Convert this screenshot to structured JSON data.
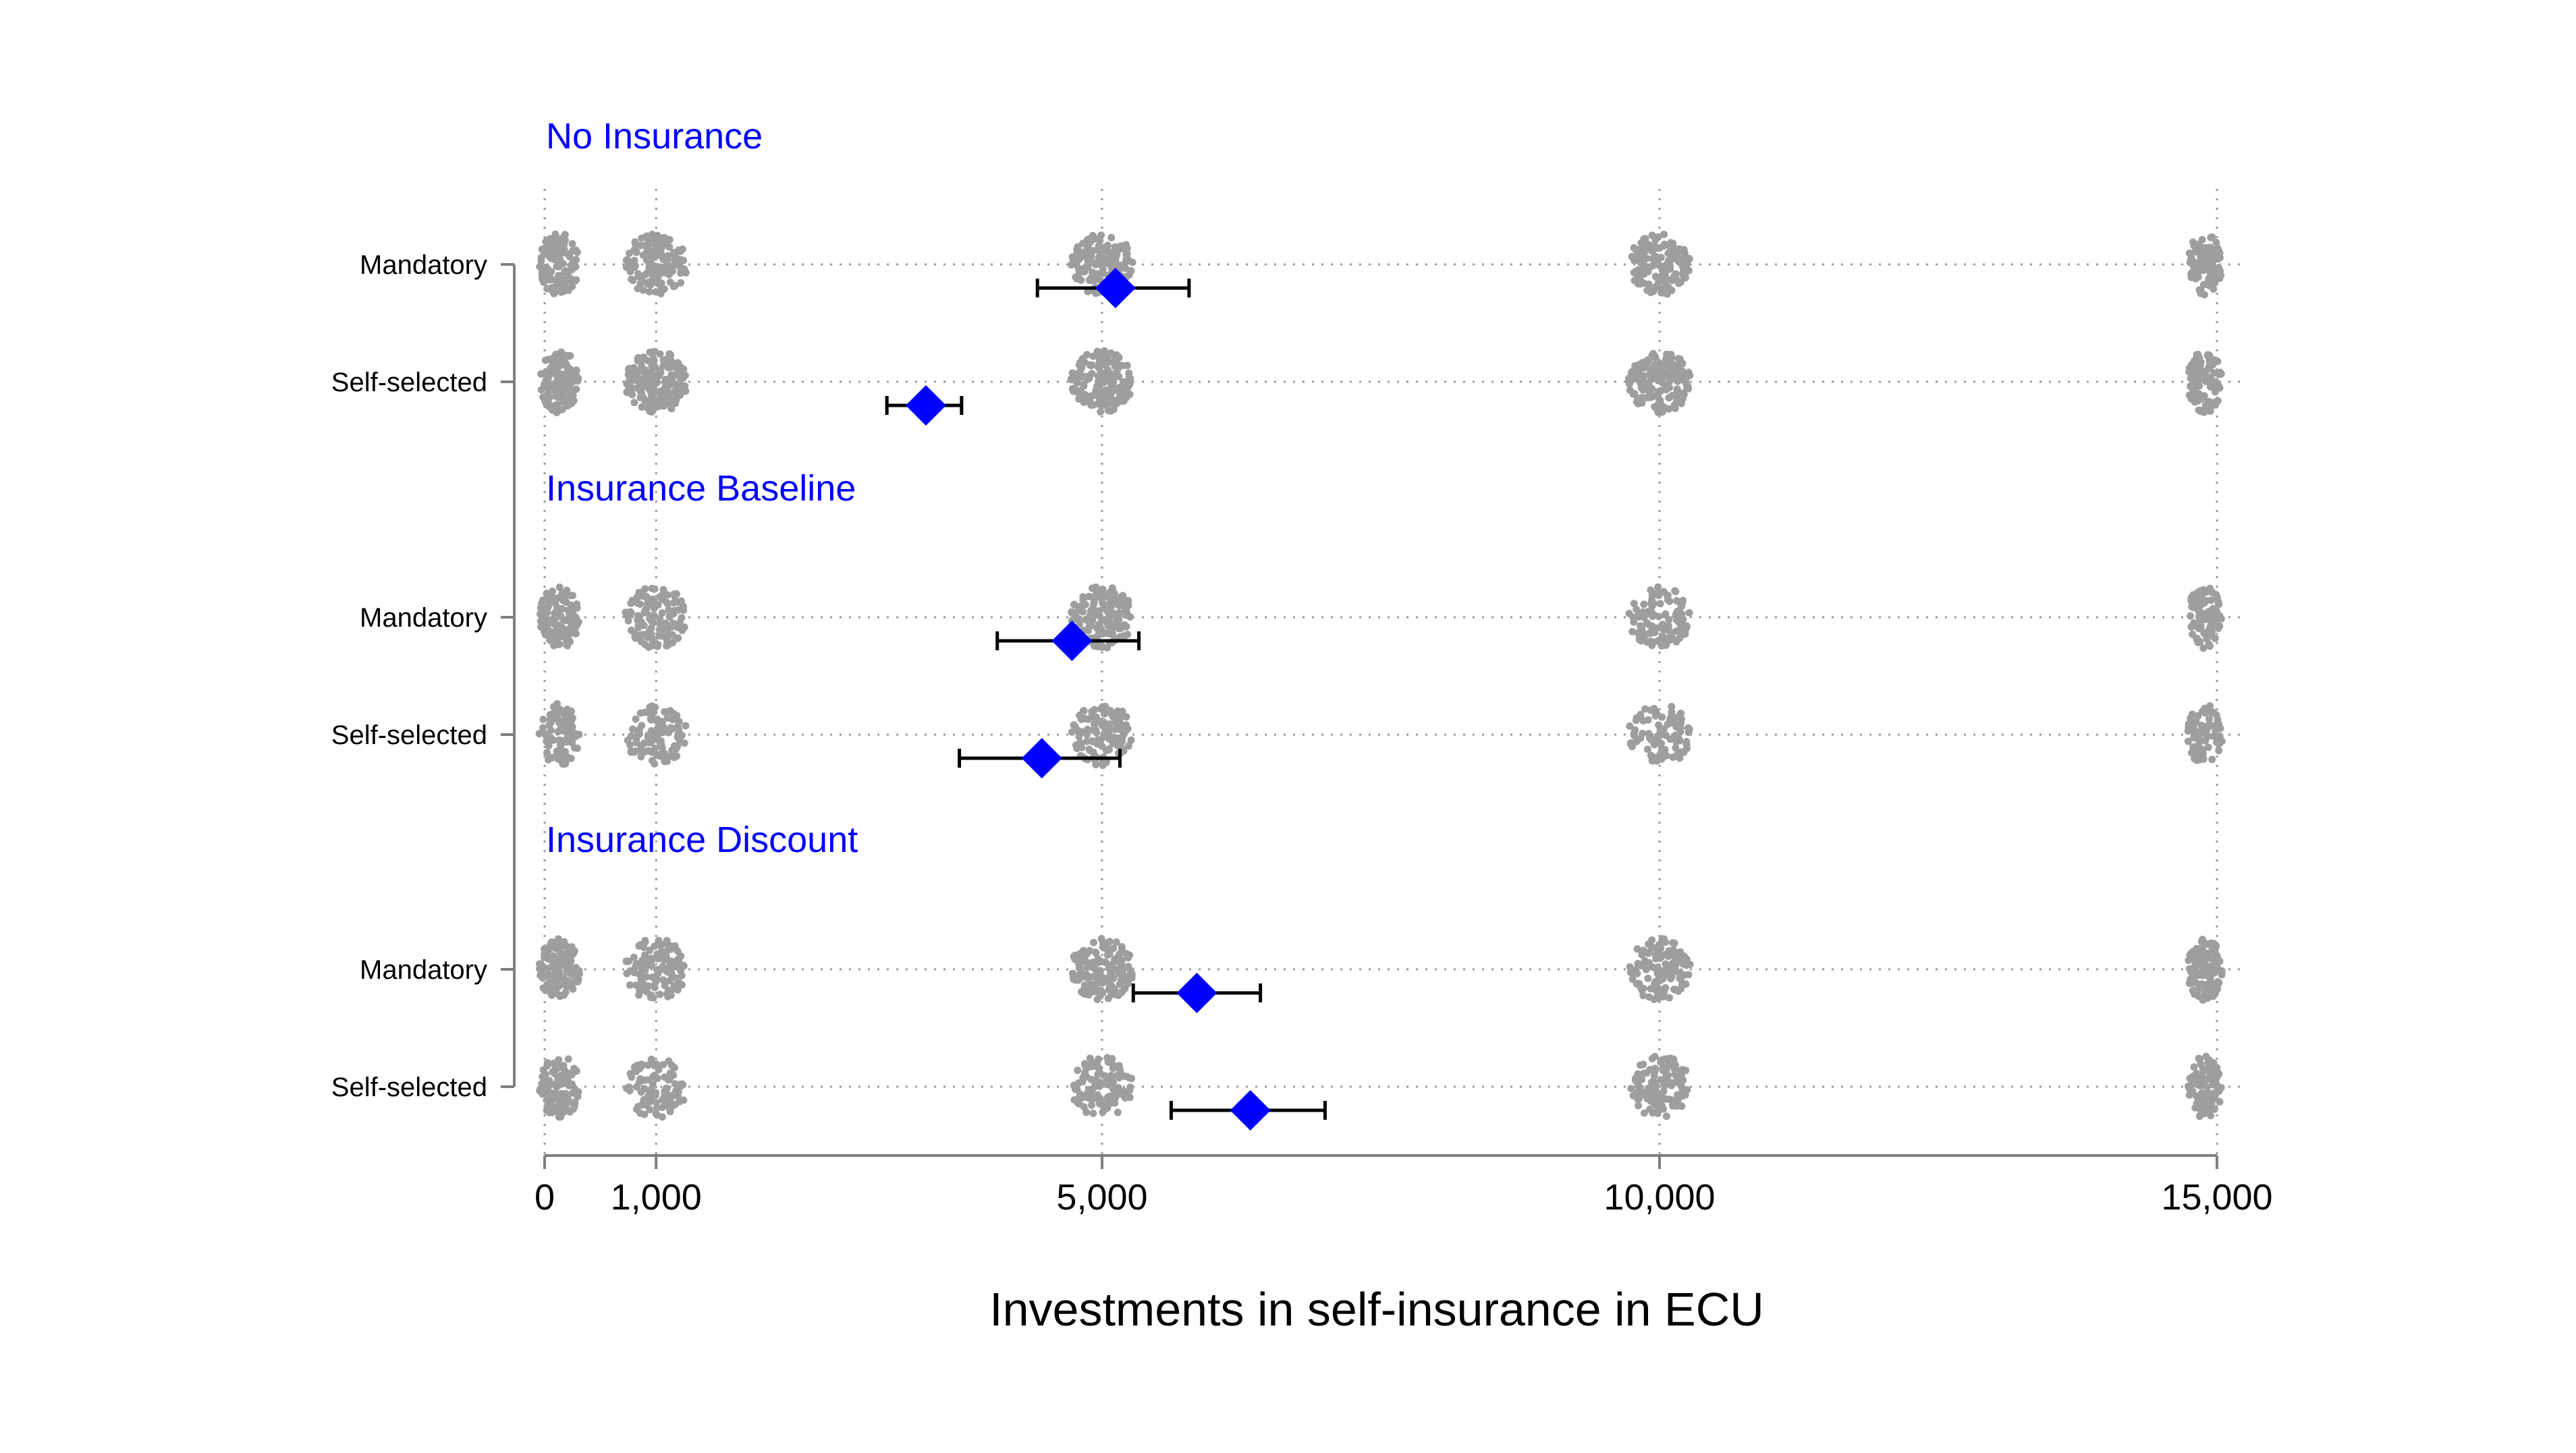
{
  "chart_data": {
    "type": "scatter",
    "title": "",
    "xlabel": "Investments in self-insurance in ECU",
    "ylabel": "",
    "xlim": [
      0,
      15000
    ],
    "xticks": [
      0,
      1000,
      5000,
      10000,
      15000
    ],
    "xtick_labels": [
      "0",
      "1,000",
      "5,000",
      "10,000",
      "15,000"
    ],
    "grid": "dotted horizontal guides per row, dotted vertical lines at ticks",
    "legend": "none",
    "colors": {
      "mean_marker": "#0000ff",
      "raw_points": "#9e9e9e",
      "group_title": "#0000ff",
      "error_bar": "#000000",
      "axis": "#7f7f7f"
    },
    "mass_points": [
      0,
      1000,
      5000,
      10000,
      15000
    ],
    "groups": [
      {
        "name": "No Insurance",
        "rows": [
          {
            "label": "Mandatory",
            "mean": 5120,
            "ci": [
              4420,
              5780
            ],
            "density": [
              0.55,
              0.65,
              0.8,
              0.8,
              0.4
            ]
          },
          {
            "label": "Self-selected",
            "mean": 3420,
            "ci": [
              3070,
              3740
            ],
            "density": [
              0.8,
              1.0,
              0.9,
              0.95,
              0.55
            ]
          }
        ]
      },
      {
        "name": "Insurance Baseline",
        "rows": [
          {
            "label": "Mandatory",
            "mean": 4730,
            "ci": [
              4060,
              5330
            ],
            "density": [
              0.55,
              0.6,
              0.75,
              0.5,
              0.4
            ]
          },
          {
            "label": "Self-selected",
            "mean": 4460,
            "ci": [
              3720,
              5160
            ],
            "density": [
              0.35,
              0.45,
              0.6,
              0.35,
              0.2
            ]
          }
        ]
      },
      {
        "name": "Insurance Discount",
        "rows": [
          {
            "label": "Mandatory",
            "mean": 5850,
            "ci": [
              5280,
              6420
            ],
            "density": [
              0.6,
              0.6,
              0.8,
              0.55,
              0.5
            ]
          },
          {
            "label": "Self-selected",
            "mean": 6330,
            "ci": [
              5620,
              7000
            ],
            "density": [
              0.4,
              0.4,
              0.6,
              0.55,
              0.4
            ]
          }
        ]
      }
    ]
  }
}
